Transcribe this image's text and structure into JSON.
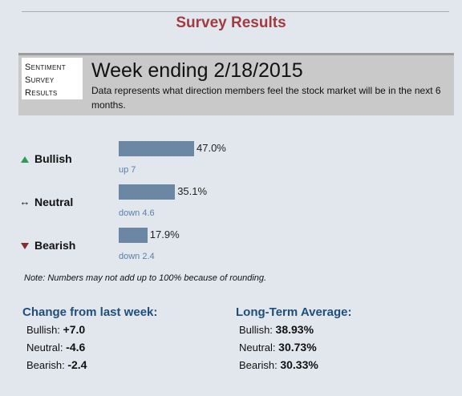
{
  "page_title": "Survey Results",
  "banner": {
    "badge_lines": [
      "Sentiment",
      "Survey",
      "Results"
    ],
    "week_title": "Week ending 2/18/2015",
    "description": "Data represents what direction members feel the stock market will be in the next 6 months."
  },
  "sentiment": [
    {
      "label": "Bullish",
      "icon": "triangle-up-icon",
      "percent": 47.0,
      "percent_label": "47.0%",
      "change": "up 7",
      "color": "#2f9a54"
    },
    {
      "label": "Neutral",
      "icon": "left-right-arrow-icon",
      "percent": 35.1,
      "percent_label": "35.1%",
      "change": "down 4.6",
      "color": "#111111"
    },
    {
      "label": "Bearish",
      "icon": "triangle-down-icon",
      "percent": 17.9,
      "percent_label": "17.9%",
      "change": "down 2.4",
      "color": "#8a2a2a"
    }
  ],
  "note": "Note: Numbers may not add up to 100% because of rounding.",
  "change_section": {
    "heading": "Change from last week:",
    "items": [
      {
        "label": "Bullish:",
        "value": "+7.0"
      },
      {
        "label": "Neutral:",
        "value": "-4.6"
      },
      {
        "label": "Bearish:",
        "value": "-2.4"
      }
    ]
  },
  "average_section": {
    "heading": "Long-Term Average:",
    "items": [
      {
        "label": "Bullish:",
        "value": "38.93%"
      },
      {
        "label": "Neutral:",
        "value": "30.73%"
      },
      {
        "label": "Bearish:",
        "value": "30.33%"
      }
    ]
  },
  "colors": {
    "bar": "#6c87a3",
    "title": "#a23b3f",
    "heading": "#1f4e79",
    "change_text": "#5a7ea8"
  }
}
